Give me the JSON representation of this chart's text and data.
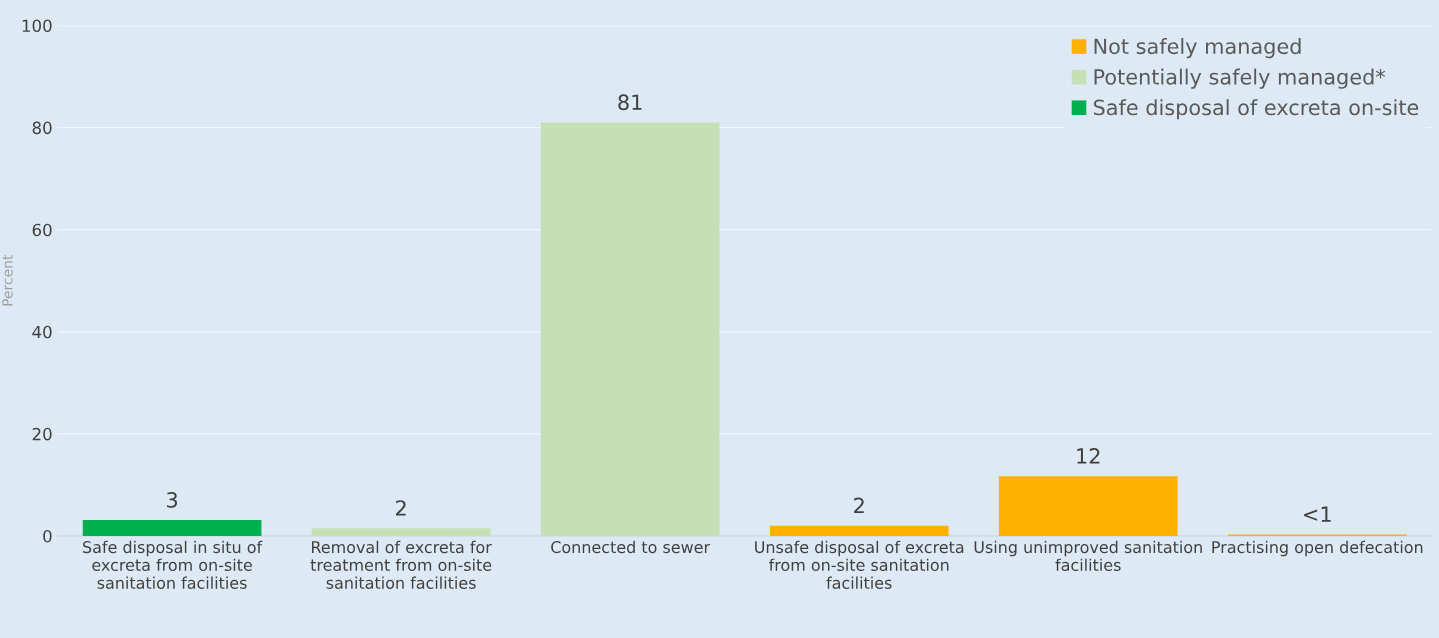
{
  "chart_data": {
    "type": "bar",
    "ylabel": "Percent",
    "categories": [
      "Safe disposal in situ of excreta from on-site sanitation facilities",
      "Removal of excreta for treatment from on-site sanitation facilities",
      "Connected to sewer",
      "Unsafe disposal of excreta from on-site sanitation facilities",
      "Using unimproved sanitation facilities",
      "Practising open defecation"
    ],
    "series": [
      {
        "name": "Not safely managed",
        "color": "#ffb000",
        "values": [
          null,
          null,
          null,
          2,
          11.7,
          0.3
        ],
        "value_labels": [
          null,
          null,
          null,
          "2",
          "12",
          "<1"
        ]
      },
      {
        "name": "Potentially safely managed*",
        "color": "#c5e0b4",
        "values": [
          null,
          1.5,
          81,
          null,
          null,
          null
        ],
        "value_labels": [
          null,
          "2",
          "81",
          null,
          null,
          null
        ]
      },
      {
        "name": "Safe disposal of excreta on-site",
        "color": "#00b050",
        "values": [
          3.1,
          null,
          null,
          null,
          null,
          null
        ],
        "value_labels": [
          "3",
          null,
          null,
          null,
          null,
          null
        ]
      }
    ],
    "ylim": [
      0,
      100
    ],
    "yticks": [
      0,
      20,
      40,
      60,
      80,
      100
    ],
    "grid": "y",
    "legend": "top right"
  }
}
